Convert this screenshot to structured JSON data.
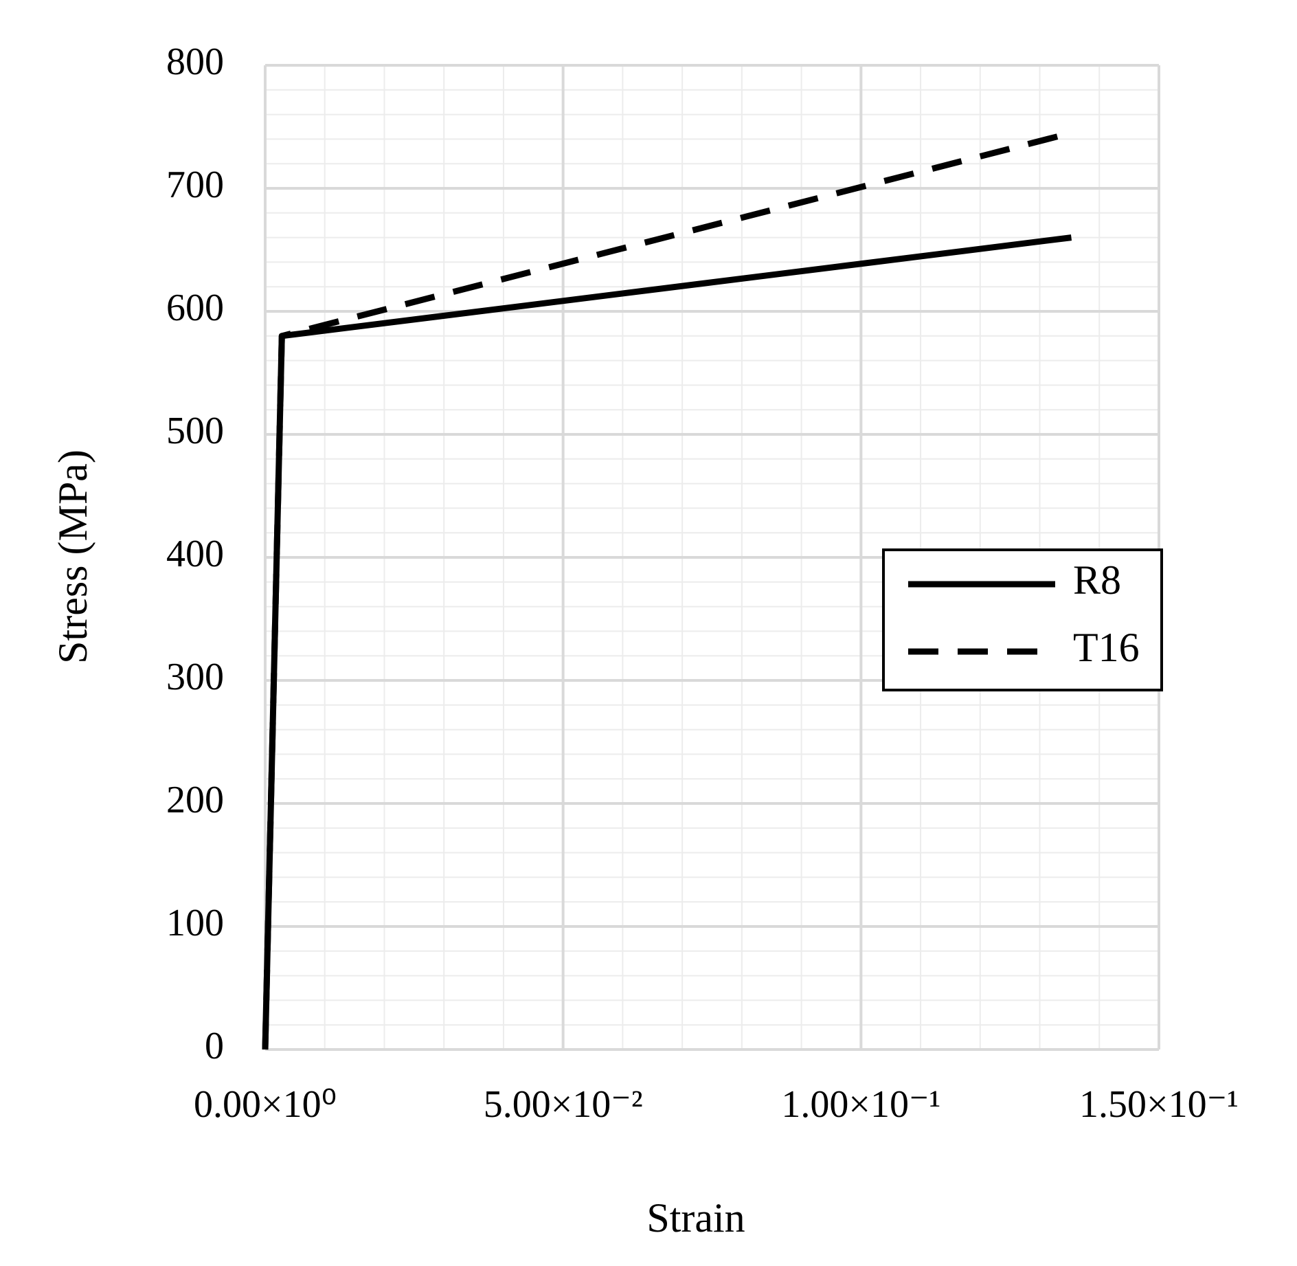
{
  "chart_data": {
    "type": "line",
    "x_label": "Strain",
    "y_label": "Stress (MPa)",
    "x": [
      0,
      0.0028,
      0.1353
    ],
    "series": [
      {
        "name": "R8",
        "color": "#000000",
        "dash": false,
        "values": [
          0,
          580,
          660
        ]
      },
      {
        "name": "T16",
        "color": "#000000",
        "dash": true,
        "values": [
          0,
          580,
          745
        ]
      }
    ],
    "xlim": [
      0,
      0.15
    ],
    "ylim": [
      0,
      800
    ],
    "xticks": [
      {
        "value": 0,
        "label": "0.00×10⁰"
      },
      {
        "value": 0.05,
        "label": "5.00×10⁻²"
      },
      {
        "value": 0.1,
        "label": "1.00×10⁻¹"
      },
      {
        "value": 0.15,
        "label": "1.50×10⁻¹"
      }
    ],
    "yticks": [
      0,
      100,
      200,
      300,
      400,
      500,
      600,
      700,
      800
    ],
    "grid": true,
    "minor_grid": {
      "x": 0.01,
      "y": 20
    },
    "legend": "right"
  }
}
